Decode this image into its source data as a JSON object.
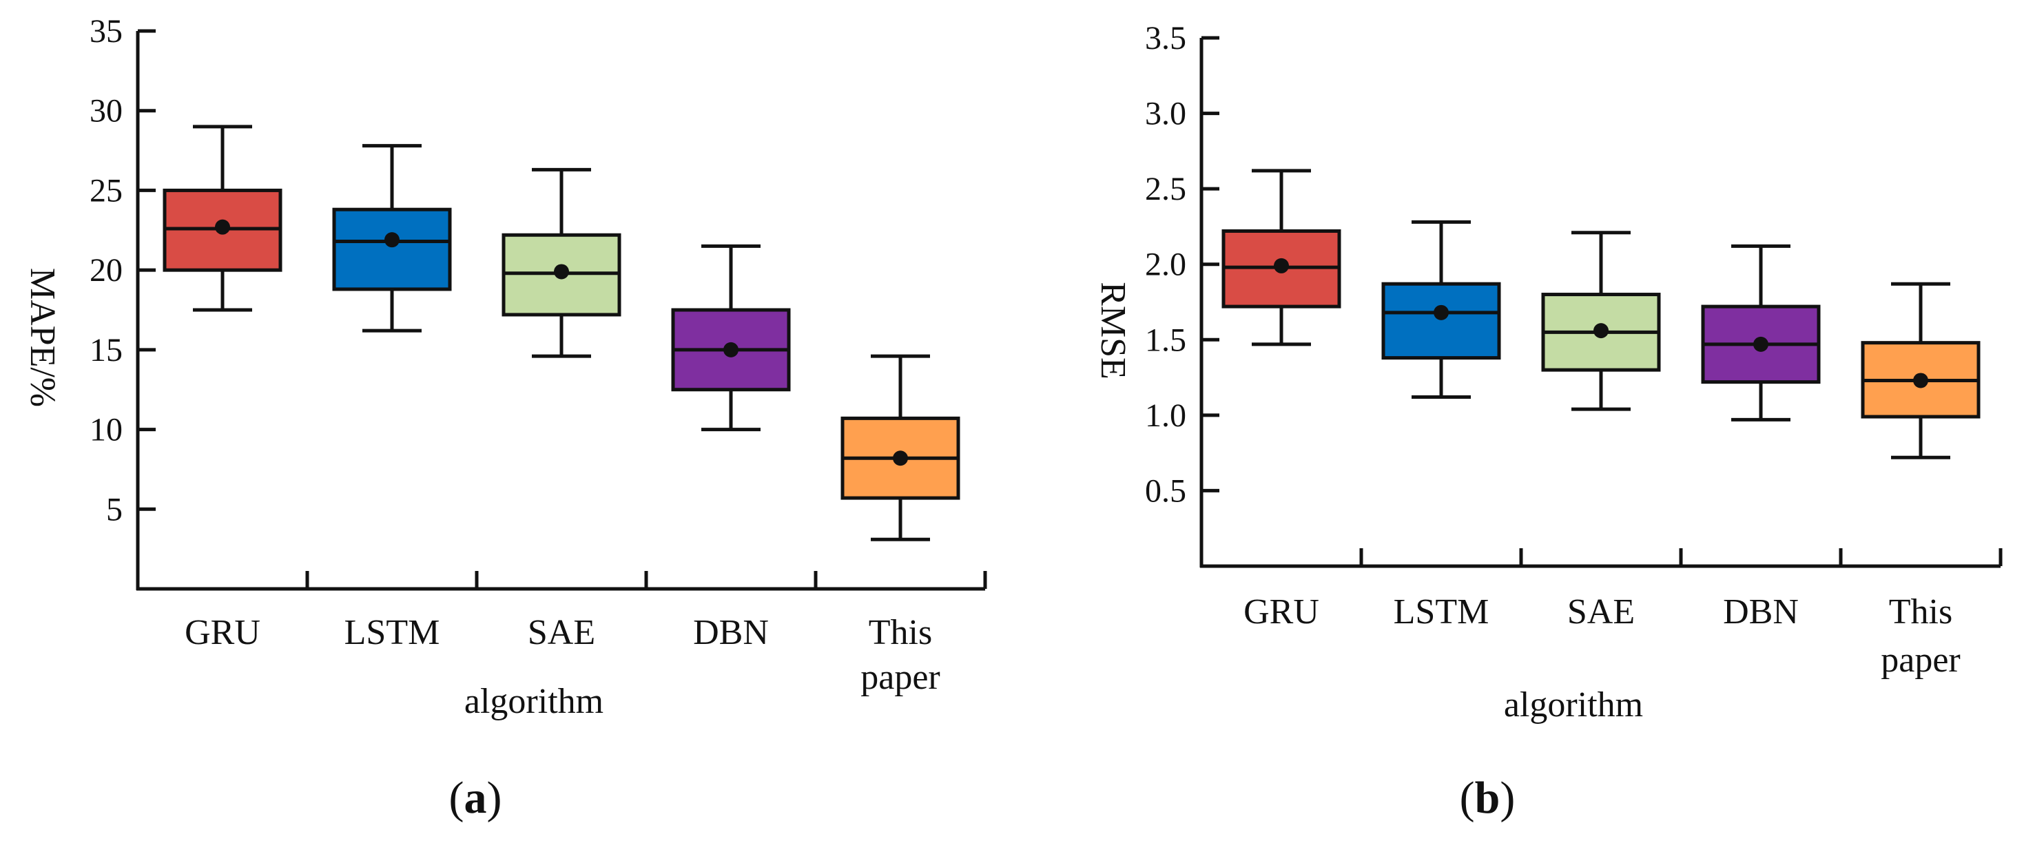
{
  "chart_data": [
    {
      "type": "box",
      "panel_label": "a",
      "xlabel": "algorithm",
      "ylabel": "MAPE/%",
      "ylim": [
        0,
        35
      ],
      "yticks": [
        5,
        10,
        15,
        20,
        25,
        30,
        35
      ],
      "ytick_labels": [
        "5",
        "10",
        "15",
        "20",
        "25",
        "30",
        "35"
      ],
      "categories": [
        [
          "GRU"
        ],
        [
          "LSTM"
        ],
        [
          "SAE"
        ],
        [
          "DBN"
        ],
        [
          "This",
          "paper"
        ]
      ],
      "boxes": [
        {
          "whisker_low": 17.5,
          "q1": 20.0,
          "median": 22.6,
          "q3": 25.0,
          "whisker_high": 29.0,
          "mean": 22.7,
          "color": "#d94c45"
        },
        {
          "whisker_low": 16.2,
          "q1": 18.8,
          "median": 21.8,
          "q3": 23.8,
          "whisker_high": 27.8,
          "mean": 21.9,
          "color": "#0070c0"
        },
        {
          "whisker_low": 14.6,
          "q1": 17.2,
          "median": 19.8,
          "q3": 22.2,
          "whisker_high": 26.3,
          "mean": 19.9,
          "color": "#c4dca4"
        },
        {
          "whisker_low": 10.0,
          "q1": 12.5,
          "median": 15.0,
          "q3": 17.5,
          "whisker_high": 21.5,
          "mean": 15.0,
          "color": "#7f2fa0"
        },
        {
          "whisker_low": 3.1,
          "q1": 5.7,
          "median": 8.2,
          "q3": 10.7,
          "whisker_high": 14.6,
          "mean": 8.2,
          "color": "#ffa04f"
        }
      ]
    },
    {
      "type": "box",
      "panel_label": "b",
      "xlabel": "algorithm",
      "ylabel": "RMSE",
      "ylim": [
        0,
        3.5
      ],
      "yticks": [
        0.5,
        1.0,
        1.5,
        2.0,
        2.5,
        3.0,
        3.5
      ],
      "ytick_labels": [
        "0.5",
        "1.0",
        "1.5",
        "2.0",
        "2.5",
        "3.0",
        "3.5"
      ],
      "categories": [
        [
          "GRU"
        ],
        [
          "LSTM"
        ],
        [
          "SAE"
        ],
        [
          "DBN"
        ],
        [
          "This",
          "paper"
        ]
      ],
      "boxes": [
        {
          "whisker_low": 1.47,
          "q1": 1.72,
          "median": 1.98,
          "q3": 2.22,
          "whisker_high": 2.62,
          "mean": 1.99,
          "color": "#d94c45"
        },
        {
          "whisker_low": 1.12,
          "q1": 1.38,
          "median": 1.68,
          "q3": 1.87,
          "whisker_high": 2.28,
          "mean": 1.68,
          "color": "#0070c0"
        },
        {
          "whisker_low": 1.04,
          "q1": 1.3,
          "median": 1.55,
          "q3": 1.8,
          "whisker_high": 2.21,
          "mean": 1.56,
          "color": "#c4dca4"
        },
        {
          "whisker_low": 0.97,
          "q1": 1.22,
          "median": 1.47,
          "q3": 1.72,
          "whisker_high": 2.12,
          "mean": 1.47,
          "color": "#7f2fa0"
        },
        {
          "whisker_low": 0.72,
          "q1": 0.99,
          "median": 1.23,
          "q3": 1.48,
          "whisker_high": 1.87,
          "mean": 1.23,
          "color": "#ffa04f"
        }
      ]
    }
  ]
}
